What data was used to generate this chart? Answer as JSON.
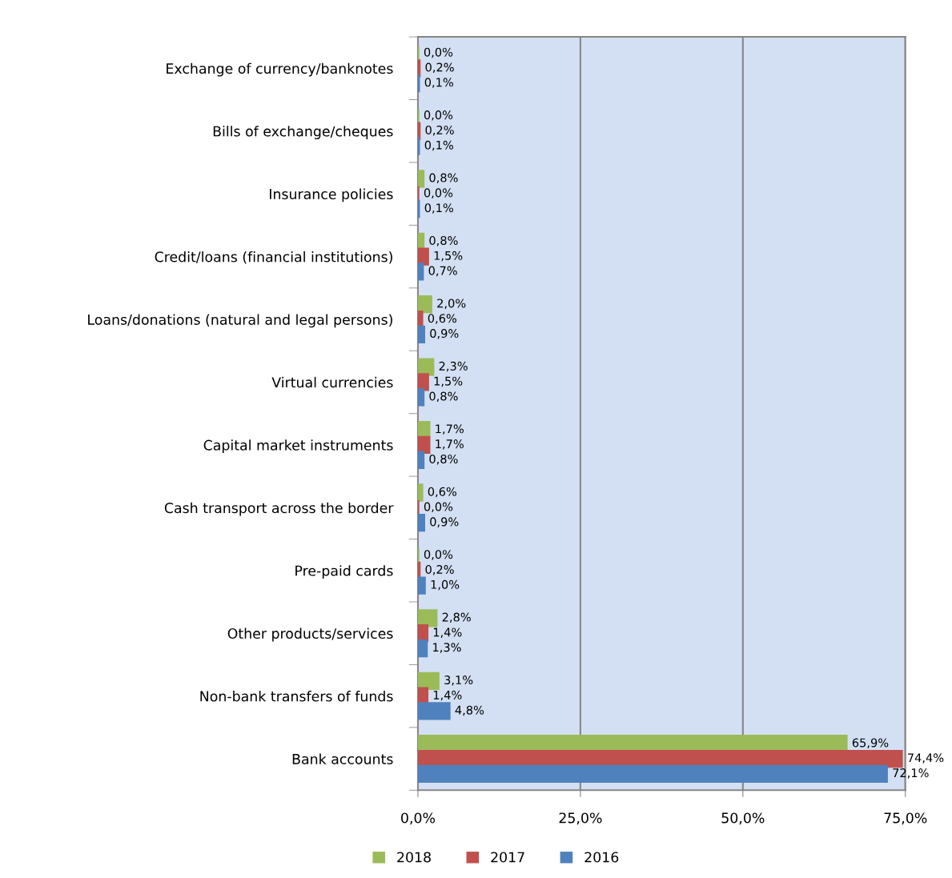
{
  "chart_data": {
    "type": "bar",
    "orientation": "horizontal",
    "categories": [
      "Exchange of currency/banknotes",
      "Bills of exchange/cheques",
      "Insurance policies",
      "Credit/loans (financial institutions)",
      "Loans/donations (natural and legal persons)",
      "Virtual currencies",
      "Capital market instruments",
      "Cash transport across the border",
      "Pre-paid cards",
      "Other products/services",
      "Non-bank transfers of funds",
      "Bank accounts"
    ],
    "series": [
      {
        "name": "2018",
        "color": "#9bbb59",
        "values": [
          0.0,
          0.0,
          0.8,
          0.8,
          2.0,
          2.3,
          1.7,
          0.6,
          0.0,
          2.8,
          3.1,
          65.9
        ],
        "value_labels": [
          "0,0%",
          "0,0%",
          "0,8%",
          "0,8%",
          "2,0%",
          "2,3%",
          "1,7%",
          "0,6%",
          "0,0%",
          "2,8%",
          "3,1%",
          "65,9%"
        ]
      },
      {
        "name": "2017",
        "color": "#c0504d",
        "values": [
          0.2,
          0.2,
          0.0,
          1.5,
          0.6,
          1.5,
          1.7,
          0.0,
          0.2,
          1.4,
          1.4,
          74.4
        ],
        "value_labels": [
          "0,2%",
          "0,2%",
          "0,0%",
          "1,5%",
          "0,6%",
          "1,5%",
          "1,7%",
          "0,0%",
          "0,2%",
          "1,4%",
          "1,4%",
          "74,4%"
        ]
      },
      {
        "name": "2016",
        "color": "#4f81bd",
        "values": [
          0.1,
          0.1,
          0.1,
          0.7,
          0.9,
          0.8,
          0.8,
          0.9,
          1.0,
          1.3,
          4.8,
          72.1
        ],
        "value_labels": [
          "0,1%",
          "0,1%",
          "0,1%",
          "0,7%",
          "0,9%",
          "0,8%",
          "0,8%",
          "0,9%",
          "1,0%",
          "1,3%",
          "4,8%",
          "72,1%"
        ]
      }
    ],
    "xlim": [
      0,
      75
    ],
    "xticks": [
      {
        "value": 0,
        "label": "0,0%"
      },
      {
        "value": 25,
        "label": "25,0%"
      },
      {
        "value": 50,
        "label": "50,0%"
      },
      {
        "value": 75,
        "label": "75,0%"
      }
    ],
    "grid": "x",
    "legend": "bottom"
  }
}
